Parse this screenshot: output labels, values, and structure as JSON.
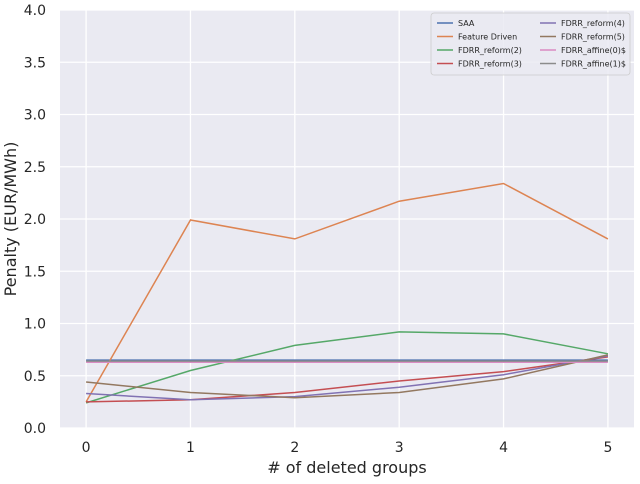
{
  "chart_data": {
    "type": "line",
    "title": "",
    "xlabel": "# of deleted groups",
    "ylabel": "Penalty (EUR/MWh)",
    "x": [
      0,
      1,
      2,
      3,
      4,
      5
    ],
    "xticks": [
      "0",
      "1",
      "2",
      "3",
      "4",
      "5"
    ],
    "yticks": [
      "0.0",
      "0.5",
      "1.0",
      "1.5",
      "2.0",
      "2.5",
      "3.0",
      "3.5",
      "4.0"
    ],
    "xlim": [
      -0.25,
      5.25
    ],
    "ylim": [
      0,
      4
    ],
    "grid": true,
    "legend_placement": "top-right",
    "background_color": "#eaeaf2",
    "series": [
      {
        "name": "SAA",
        "color": "#4c72b0",
        "values": [
          0.65,
          0.65,
          0.65,
          0.65,
          0.65,
          0.65
        ]
      },
      {
        "name": "Feature Driven",
        "color": "#dd8452",
        "values": [
          0.25,
          1.99,
          1.81,
          2.17,
          2.34,
          1.81
        ]
      },
      {
        "name": "FDRR_reform(2)",
        "color": "#55a868",
        "values": [
          0.24,
          0.55,
          0.79,
          0.92,
          0.9,
          0.71
        ]
      },
      {
        "name": "FDRR_reform(3)",
        "color": "#c44e52",
        "values": [
          0.25,
          0.27,
          0.34,
          0.45,
          0.54,
          0.68
        ]
      },
      {
        "name": "FDRR_reform(4)",
        "color": "#8172b3",
        "values": [
          0.33,
          0.27,
          0.3,
          0.39,
          0.51,
          0.69
        ]
      },
      {
        "name": "FDRR_reform(5)",
        "color": "#937860",
        "values": [
          0.44,
          0.34,
          0.29,
          0.34,
          0.47,
          0.7
        ]
      },
      {
        "name": "FDRR_affine(0)$",
        "color": "#da8bc3",
        "values": [
          0.63,
          0.63,
          0.63,
          0.63,
          0.63,
          0.63
        ]
      },
      {
        "name": "FDRR_affine(1)$",
        "color": "#8c8c8c",
        "values": [
          0.64,
          0.64,
          0.64,
          0.64,
          0.64,
          0.64
        ]
      }
    ]
  }
}
